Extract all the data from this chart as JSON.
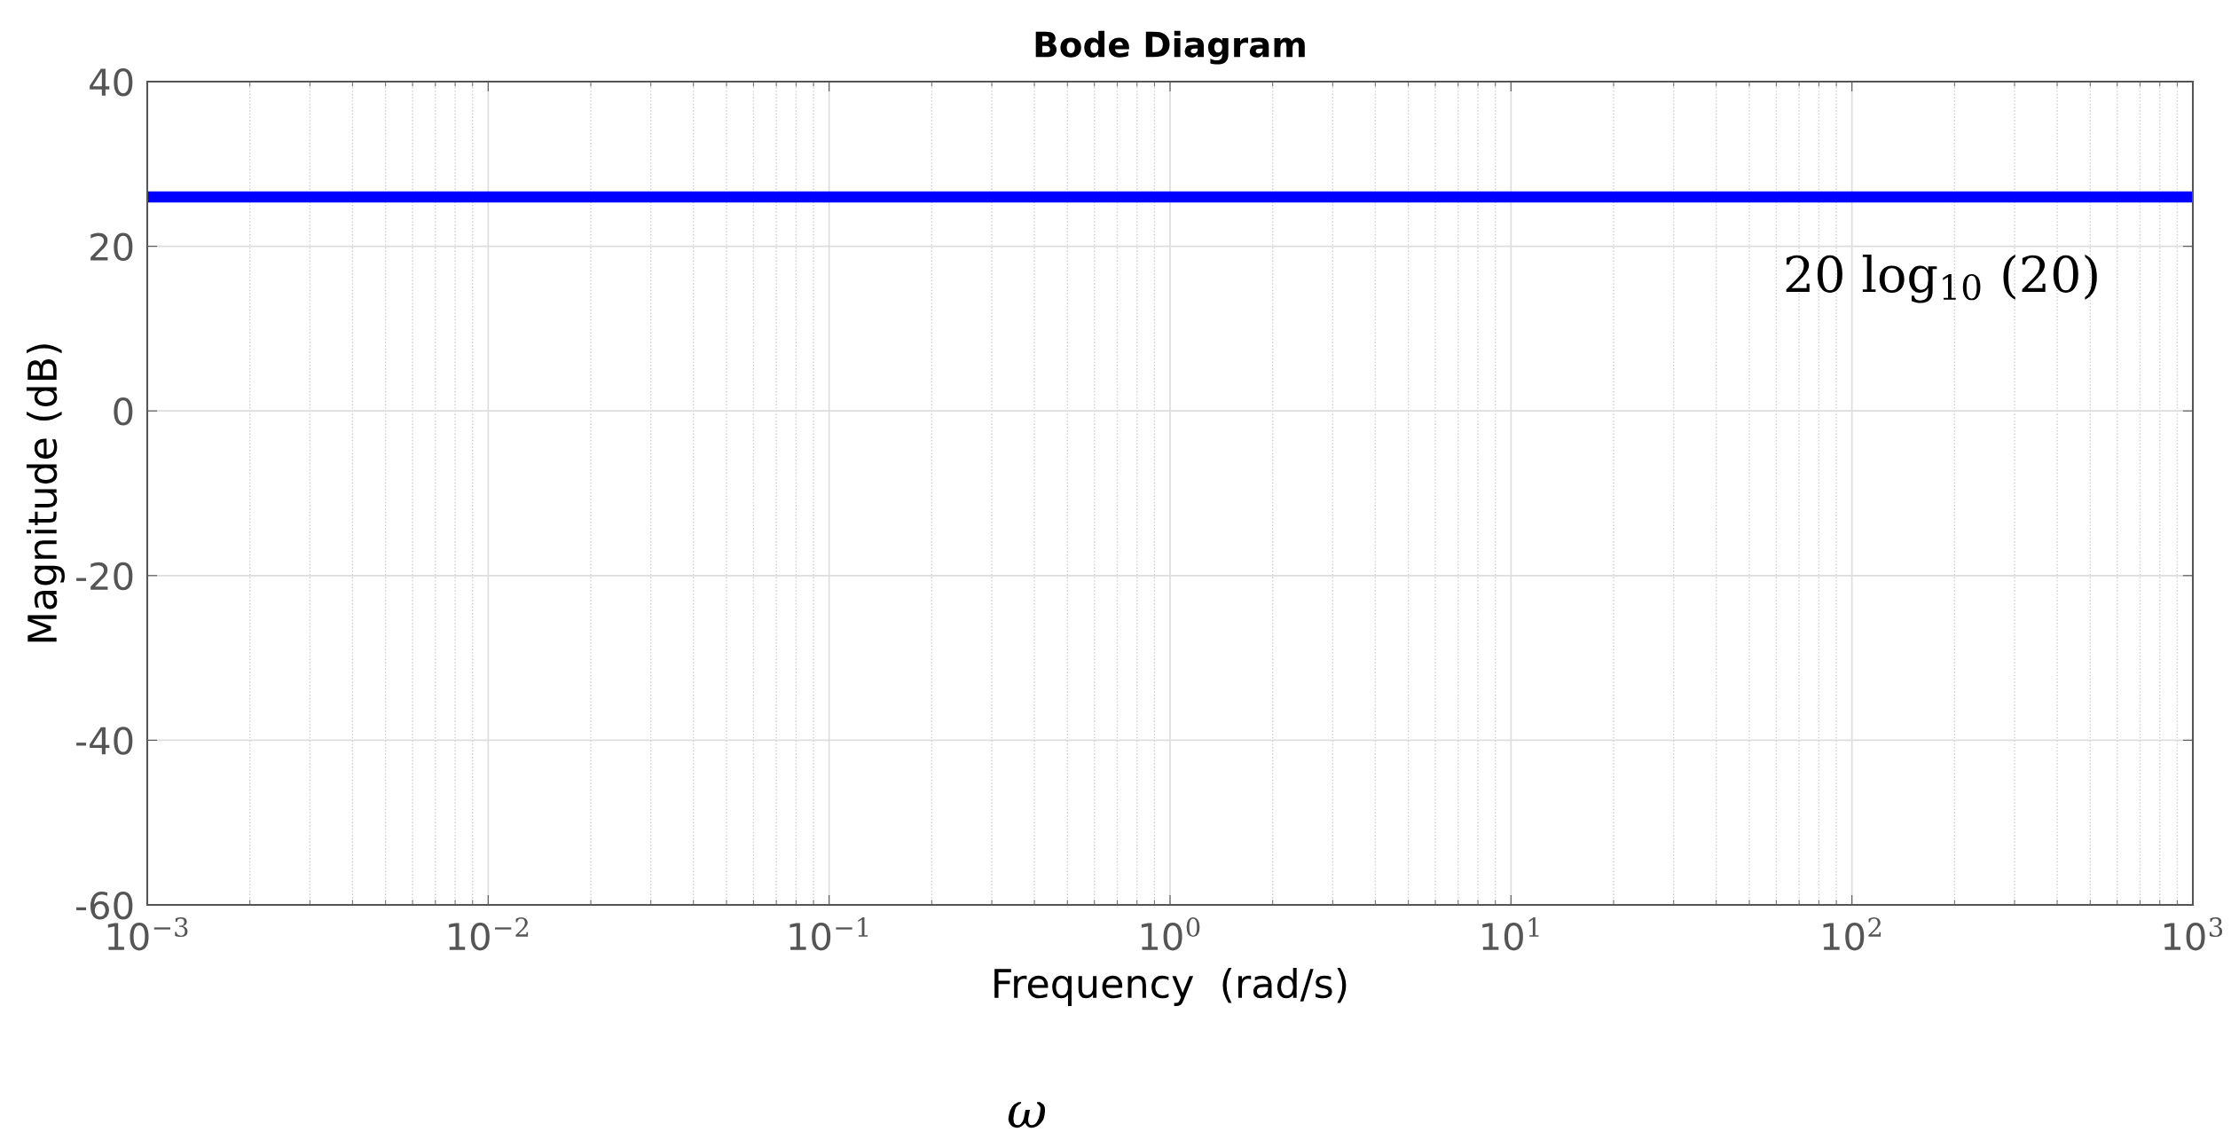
{
  "chart_data": {
    "type": "line",
    "title": "Bode Diagram",
    "xlabel": "Frequency  (rad/s)",
    "ylabel": "Magnitude (dB)",
    "x": [
      0.001,
      1000
    ],
    "series": [
      {
        "color": "#0000ff",
        "values": [
          26,
          26
        ]
      }
    ],
    "log": "x",
    "xlim": [
      0.001,
      1000
    ],
    "xticks": [
      {
        "value": 0.001,
        "label": "10$^{−3}$"
      },
      {
        "value": 0.01,
        "label": "10$^{−2}$"
      },
      {
        "value": 0.1,
        "label": "10$^{−1}$"
      },
      {
        "value": 1,
        "label": "10$^{0}$"
      },
      {
        "value": 10,
        "label": "10$^{1}$"
      },
      {
        "value": 100,
        "label": "10$^{2}$"
      },
      {
        "value": 1000,
        "label": "10$^{3}$"
      }
    ],
    "ylim": [
      -60,
      40
    ],
    "yticks": [
      -60,
      -40,
      -20,
      0,
      20,
      40
    ],
    "grid": true,
    "line_style": "solid",
    "legend": false,
    "annotations": [
      "20 log$_{10}$ (20)",
      "ω"
    ]
  }
}
